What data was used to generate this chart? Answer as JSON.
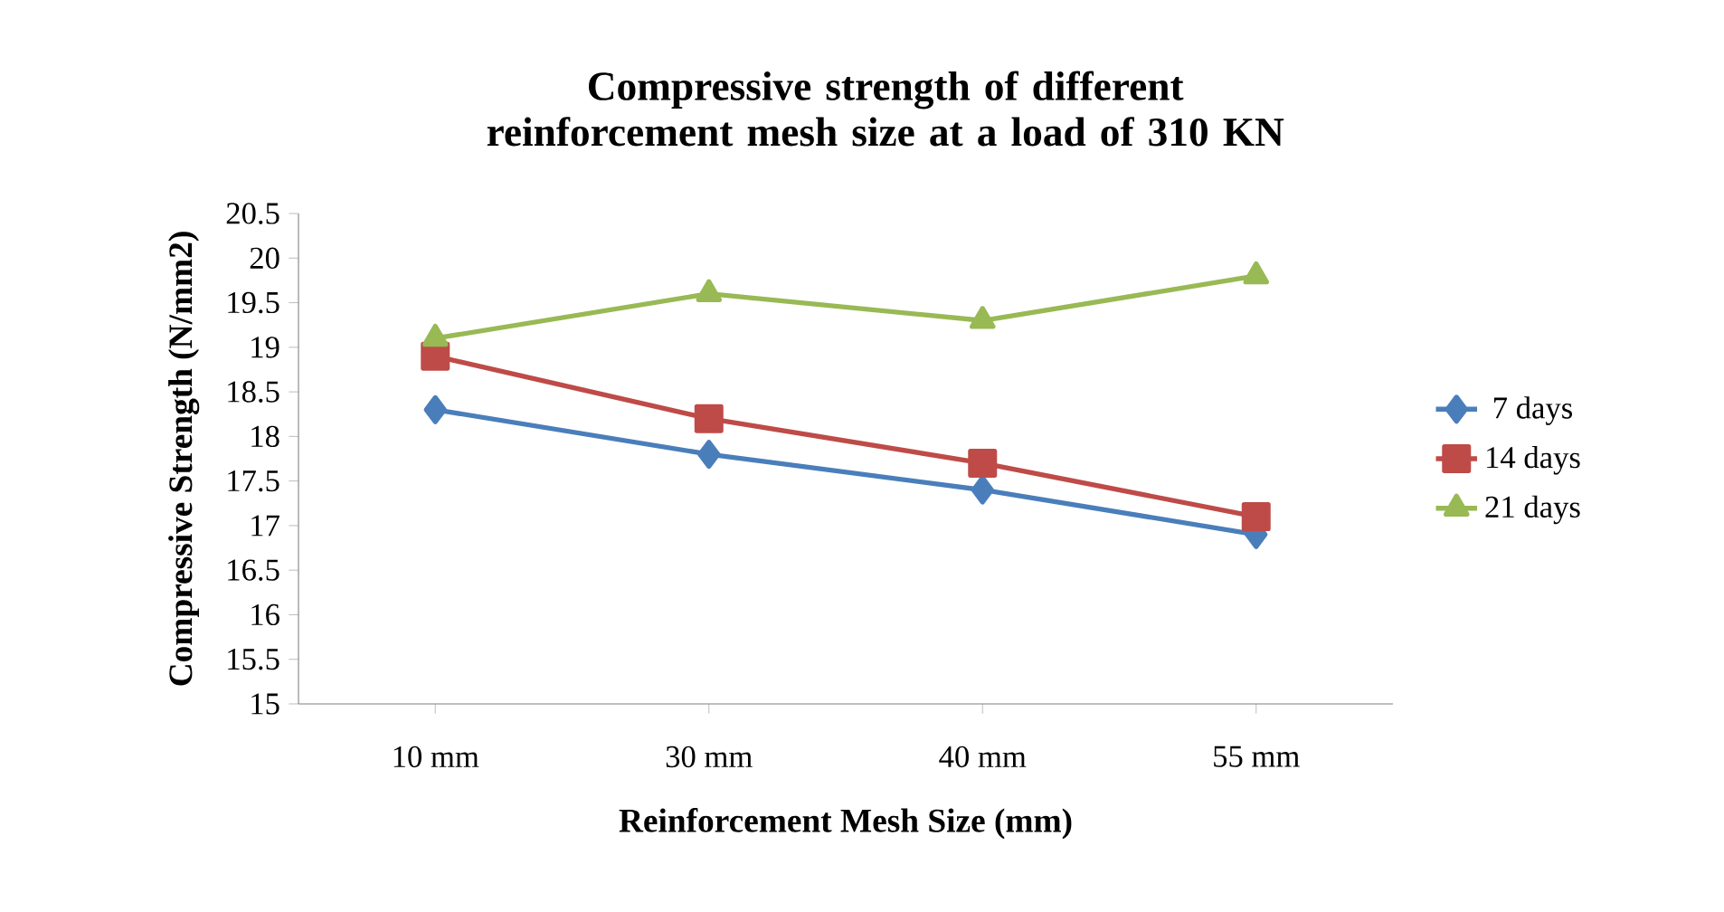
{
  "chart_data": {
    "type": "line",
    "title": "Compressive strength of different reinforcement mesh size at a load of 310 KN",
    "xlabel": "Reinforcement Mesh Size (mm)",
    "ylabel": "Compressive Strength (N/mm2)",
    "categories": [
      "10 mm",
      "30 mm",
      "40 mm",
      "55 mm"
    ],
    "series": [
      {
        "name": "7 days",
        "color": "#4a7ebb",
        "marker": "diamond",
        "values": [
          18.3,
          17.8,
          17.4,
          16.9
        ]
      },
      {
        "name": "14 days",
        "color": "#be4b48",
        "marker": "square",
        "values": [
          18.9,
          18.2,
          17.7,
          17.1
        ]
      },
      {
        "name": "21 days",
        "color": "#98b954",
        "marker": "triangle",
        "values": [
          19.1,
          19.6,
          19.3,
          19.8
        ]
      }
    ],
    "ylim": [
      15,
      20.5
    ],
    "yticks": [
      15,
      15.5,
      16,
      16.5,
      17,
      17.5,
      18,
      18.5,
      19,
      19.5,
      20,
      20.5
    ],
    "grid": false,
    "legend": "right"
  }
}
